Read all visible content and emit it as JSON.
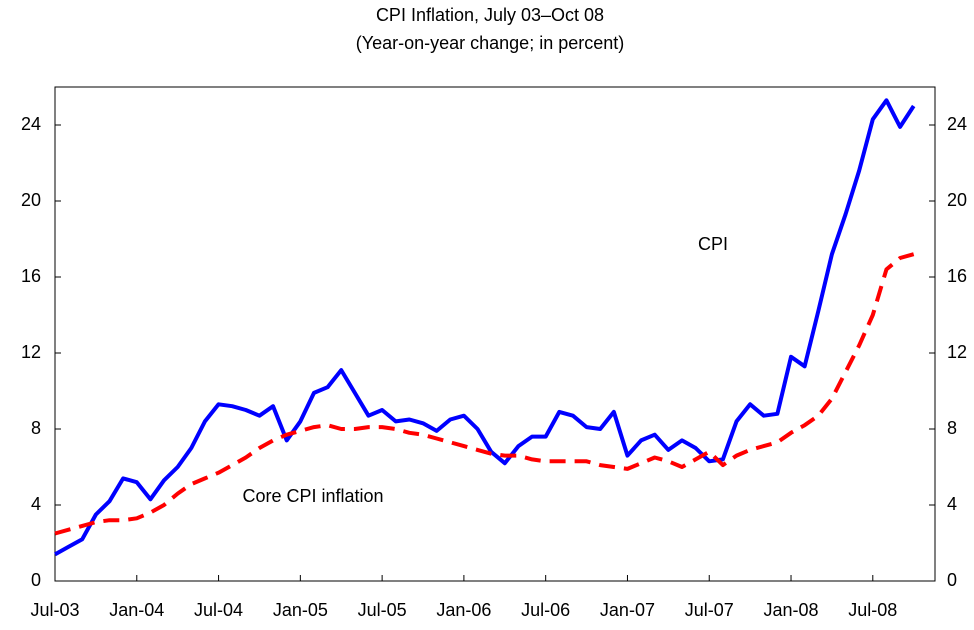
{
  "chart_data": {
    "type": "line",
    "title": "CPI Inflation, July 03–Oct 08",
    "subtitle": "(Year-on-year change; in percent)",
    "categories": [
      "Jul-03",
      null,
      null,
      null,
      null,
      null,
      "Jan-04",
      null,
      null,
      null,
      null,
      null,
      "Jul-04",
      null,
      null,
      null,
      null,
      null,
      "Jan-05",
      null,
      null,
      null,
      null,
      null,
      "Jul-05",
      null,
      null,
      null,
      null,
      null,
      "Jan-06",
      null,
      null,
      null,
      null,
      null,
      "Jul-06",
      null,
      null,
      null,
      null,
      null,
      "Jan-07",
      null,
      null,
      null,
      null,
      null,
      "Jul-07",
      null,
      null,
      null,
      null,
      null,
      "Jan-08",
      null,
      null,
      null,
      null,
      null,
      "Jul-08",
      null,
      null,
      null
    ],
    "series": [
      {
        "name": "CPI",
        "color": "#0000ff",
        "dash": "solid",
        "values": [
          1.4,
          1.8,
          2.2,
          3.5,
          4.2,
          5.4,
          5.2,
          4.3,
          5.3,
          6.0,
          7.0,
          8.4,
          9.3,
          9.2,
          9.0,
          8.7,
          9.2,
          7.4,
          8.4,
          9.9,
          10.2,
          11.1,
          9.9,
          8.7,
          9.0,
          8.4,
          8.5,
          8.3,
          7.9,
          8.5,
          8.7,
          8.0,
          6.8,
          6.2,
          7.1,
          7.6,
          7.6,
          8.9,
          8.7,
          8.1,
          8.0,
          8.9,
          6.6,
          7.4,
          7.7,
          6.9,
          7.4,
          7.0,
          6.3,
          6.4,
          8.4,
          9.3,
          8.7,
          8.8,
          11.8,
          11.3,
          14.2,
          17.2,
          19.3,
          21.6,
          24.3,
          25.3,
          23.9,
          25.0
        ]
      },
      {
        "name": "Core CPI inflation",
        "color": "#ff0000",
        "dash": "dashed",
        "values": [
          2.5,
          2.7,
          2.9,
          3.1,
          3.2,
          3.2,
          3.3,
          3.6,
          4.0,
          4.6,
          5.1,
          5.4,
          5.7,
          6.1,
          6.5,
          7.0,
          7.4,
          7.7,
          7.9,
          8.1,
          8.2,
          8.0,
          8.0,
          8.1,
          8.1,
          8.0,
          7.8,
          7.7,
          7.5,
          7.3,
          7.1,
          6.9,
          6.7,
          6.6,
          6.6,
          6.4,
          6.3,
          6.3,
          6.3,
          6.3,
          6.1,
          6.0,
          5.9,
          6.2,
          6.5,
          6.3,
          6.0,
          6.4,
          6.8,
          6.1,
          6.6,
          6.9,
          7.1,
          7.3,
          7.8,
          8.2,
          8.7,
          9.6,
          11.0,
          12.4,
          14.0,
          16.4,
          17.0,
          17.2
        ]
      }
    ],
    "ylim": [
      0,
      26
    ],
    "yticks": [
      0,
      4,
      8,
      12,
      16,
      20,
      24
    ],
    "y2lim": [
      0,
      26
    ],
    "y2ticks": [
      0,
      4,
      8,
      12,
      16,
      20,
      24
    ],
    "grid": false
  }
}
